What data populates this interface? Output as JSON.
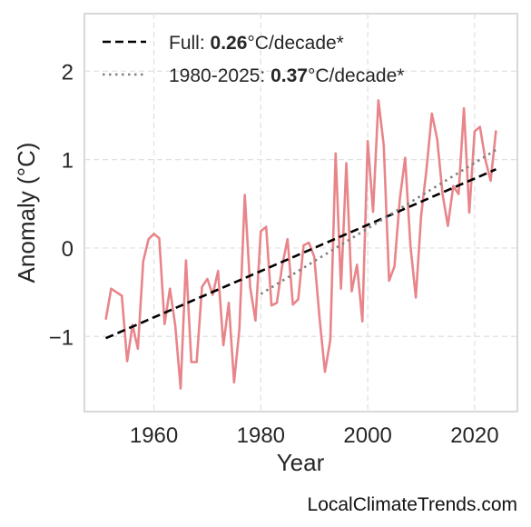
{
  "chart_data": {
    "type": "line",
    "xlabel": "Year",
    "ylabel": "Anomaly (°C)",
    "xlim": [
      1947,
      2028
    ],
    "ylim": [
      -1.85,
      2.65
    ],
    "xticks": [
      "1960",
      "1980",
      "2000",
      "2020"
    ],
    "yticks": [
      "−1",
      "0",
      "1",
      "2"
    ],
    "grid": true,
    "legend_position": "top-left",
    "series": [
      {
        "x": [
          1951,
          1952,
          1953,
          1954,
          1955,
          1956,
          1957,
          1958,
          1959,
          1960,
          1961,
          1962,
          1963,
          1964,
          1965,
          1966,
          1967,
          1968,
          1969,
          1970,
          1971,
          1972,
          1973,
          1974,
          1975,
          1976,
          1977,
          1978,
          1979,
          1980,
          1981,
          1982,
          1983,
          1984,
          1985,
          1986,
          1987,
          1988,
          1989,
          1990,
          1991,
          1992,
          1993,
          1994,
          1995,
          1996,
          1997,
          1998,
          1999,
          2000,
          2001,
          2002,
          2003,
          2004,
          2005,
          2006,
          2007,
          2008,
          2009,
          2010,
          2011,
          2012,
          2013,
          2014,
          2015,
          2016,
          2017,
          2018,
          2019,
          2020,
          2021,
          2022,
          2023,
          2024
        ],
        "values": [
          -0.81,
          -0.46,
          -0.5,
          -0.54,
          -1.28,
          -0.87,
          -1.14,
          -0.15,
          0.1,
          0.16,
          0.11,
          -0.86,
          -0.46,
          -0.88,
          -1.59,
          -0.14,
          -1.29,
          -1.29,
          -0.44,
          -0.35,
          -0.53,
          -0.26,
          -1.1,
          -0.62,
          -1.52,
          -0.91,
          0.6,
          -0.44,
          -0.82,
          0.19,
          0.24,
          -0.65,
          -0.62,
          -0.2,
          0.1,
          -0.64,
          -0.58,
          0.03,
          0.06,
          -0.1,
          -0.8,
          -1.4,
          -1.04,
          1.07,
          -0.46,
          0.96,
          -0.49,
          -0.19,
          -0.83,
          1.21,
          0.41,
          1.67,
          1.16,
          -0.37,
          -0.21,
          0.55,
          1.02,
          0.02,
          -0.56,
          0.37,
          0.89,
          1.52,
          1.23,
          0.61,
          0.25,
          0.7,
          0.61,
          1.58,
          0.4,
          1.32,
          1.37,
          1.0,
          0.76,
          1.33
        ],
        "color": "#e8858a"
      },
      {
        "name_parts": [
          "Full: ",
          "0.26",
          "°C/decade*"
        ],
        "x": [
          1951,
          2024
        ],
        "values": [
          -1.02,
          0.89
        ],
        "style": "dashed",
        "color": "#000000"
      },
      {
        "name_parts": [
          "1980-2025: ",
          "0.37",
          "°C/decade*"
        ],
        "x": [
          1980,
          2024
        ],
        "values": [
          -0.52,
          1.11
        ],
        "style": "dotted",
        "color": "#808080"
      }
    ]
  },
  "footer": {
    "source": "LocalClimateTrends.com"
  }
}
